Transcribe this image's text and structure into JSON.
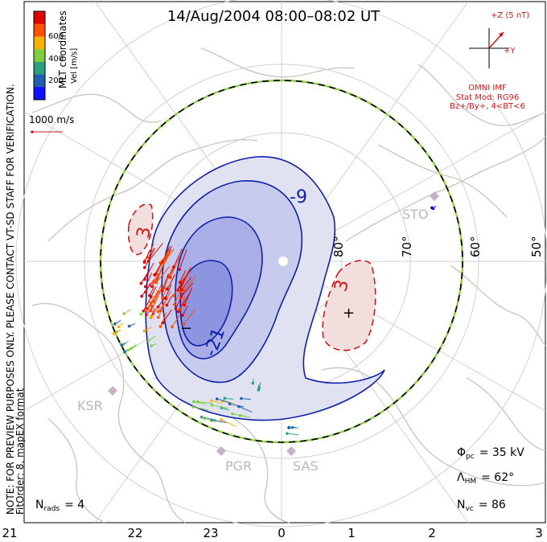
{
  "title": "14/Aug/2004 08:00–08:02 UT",
  "color_bar": {
    "label": "Vel [m/s]",
    "ticks": [
      "600",
      "400",
      "200"
    ],
    "colors": [
      "#e00000",
      "#ff5000",
      "#ffb000",
      "#7fd040",
      "#2aa080",
      "#2060b0",
      "#1010ff"
    ]
  },
  "coord_label": "MLT coordinates",
  "scale_vector_label": "1000 m/s",
  "imf": {
    "z_label": "+Z (5 nT)",
    "y_label": "+Y",
    "source": "OMNI IMF",
    "stat_mod": "Stat Mod: RG96",
    "condition": "Bz+/By+, 4<BT<6"
  },
  "lat_labels": [
    "80°",
    "70°",
    "60°",
    "50°"
  ],
  "contour_labels": [
    "-9",
    "-21",
    "3",
    "3"
  ],
  "extrema_marks": [
    "−",
    "+"
  ],
  "stations": [
    "STO",
    "KSR",
    "PGR",
    "SAS"
  ],
  "mlt_labels": [
    "21",
    "22",
    "23",
    "0",
    "1",
    "2",
    "3"
  ],
  "notice": "NOTE: FOR PREVIEW PURPOSES ONLY. PLEASE CONTACT VT-SD STAFF FOR VERIFICATION.",
  "fit_info": "FitOrder: 8, mapEX format",
  "stats": {
    "n_rads_sym": "N",
    "n_rads_sub": "rads",
    "n_rads_val": "=  4",
    "phi_sym": "Φ",
    "phi_sub": "pc",
    "phi_val": "=  35 kV",
    "lambda_sym": "Λ",
    "lambda_sub": "HM",
    "lambda_val": "=  62°",
    "nvc_sym": "N",
    "nvc_sub": "vc",
    "nvc_val": "=  86"
  }
}
